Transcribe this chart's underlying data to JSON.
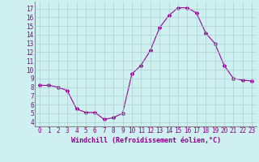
{
  "x": [
    0,
    1,
    2,
    3,
    4,
    5,
    6,
    7,
    8,
    9,
    10,
    11,
    12,
    13,
    14,
    15,
    16,
    17,
    18,
    19,
    20,
    21,
    22,
    23
  ],
  "y": [
    8.2,
    8.2,
    8.0,
    7.6,
    5.5,
    5.1,
    5.1,
    4.3,
    4.5,
    5.0,
    9.5,
    10.5,
    12.2,
    14.8,
    16.2,
    17.1,
    17.1,
    16.5,
    14.2,
    13.0,
    10.5,
    9.0,
    8.8,
    8.7
  ],
  "line_color": "#990099",
  "marker": "D",
  "marker_size": 2,
  "bg_color": "#cff0f0",
  "grid_color": "#aacfcf",
  "xlabel": "Windchill (Refroidissement éolien,°C)",
  "xlabel_color": "#880088",
  "tick_color": "#880088",
  "ylim": [
    3.5,
    17.8
  ],
  "xlim": [
    -0.5,
    23.5
  ],
  "yticks": [
    4,
    5,
    6,
    7,
    8,
    9,
    10,
    11,
    12,
    13,
    14,
    15,
    16,
    17
  ],
  "xticks": [
    0,
    1,
    2,
    3,
    4,
    5,
    6,
    7,
    8,
    9,
    10,
    11,
    12,
    13,
    14,
    15,
    16,
    17,
    18,
    19,
    20,
    21,
    22,
    23
  ],
  "tick_fontsize": 5.5,
  "xlabel_fontsize": 6.0,
  "spine_color": "#888888"
}
